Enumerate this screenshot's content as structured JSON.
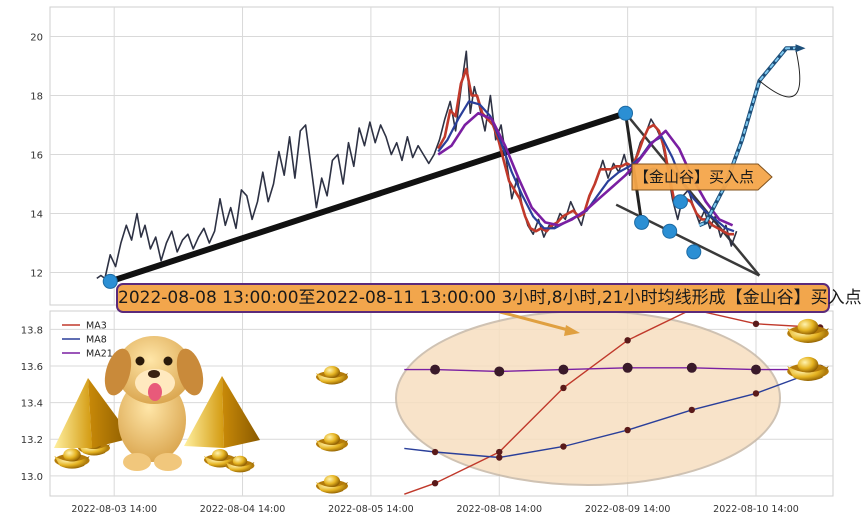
{
  "chart_data": [
    {
      "type": "line",
      "title": "",
      "xlabel": "",
      "ylabel": "",
      "ylim": [
        10.9,
        21
      ],
      "yticks": [
        12,
        14,
        16,
        18,
        20
      ],
      "grid": true,
      "series": [
        {
          "values": [
            [
              0,
              11.8
            ],
            [
              0.3,
              11.9
            ],
            [
              0.6,
              11.8
            ],
            [
              1,
              12.6
            ],
            [
              1.4,
              12.2
            ],
            [
              1.8,
              13.0
            ],
            [
              2.2,
              13.6
            ],
            [
              2.6,
              13.1
            ],
            [
              3,
              14.0
            ],
            [
              3.3,
              13.2
            ],
            [
              3.6,
              13.6
            ],
            [
              4,
              12.8
            ],
            [
              4.4,
              13.2
            ],
            [
              4.8,
              12.4
            ],
            [
              5.2,
              13.0
            ],
            [
              5.6,
              13.4
            ],
            [
              6,
              12.7
            ],
            [
              6.4,
              13.1
            ],
            [
              6.8,
              13.3
            ],
            [
              7.2,
              12.8
            ],
            [
              7.6,
              13.2
            ],
            [
              8,
              13.5
            ],
            [
              8.4,
              13.0
            ],
            [
              8.8,
              13.4
            ],
            [
              9.2,
              14.5
            ],
            [
              9.6,
              13.6
            ],
            [
              10,
              14.2
            ],
            [
              10.4,
              13.5
            ],
            [
              10.8,
              14.8
            ],
            [
              11.2,
              14.6
            ],
            [
              11.6,
              13.8
            ],
            [
              12,
              14.4
            ],
            [
              12.4,
              15.4
            ],
            [
              12.8,
              14.4
            ],
            [
              13.2,
              15.0
            ],
            [
              13.6,
              16.1
            ],
            [
              14,
              15.3
            ],
            [
              14.4,
              16.6
            ],
            [
              14.8,
              15.2
            ],
            [
              15.2,
              16.8
            ],
            [
              15.6,
              17.0
            ],
            [
              16,
              15.6
            ],
            [
              16.4,
              14.2
            ],
            [
              16.8,
              15.2
            ],
            [
              17.2,
              14.6
            ],
            [
              17.6,
              15.8
            ],
            [
              18,
              16.0
            ],
            [
              18.4,
              15.0
            ],
            [
              18.8,
              16.4
            ],
            [
              19.2,
              15.6
            ],
            [
              19.6,
              16.9
            ],
            [
              20,
              16.3
            ],
            [
              20.4,
              17.1
            ],
            [
              20.8,
              16.4
            ],
            [
              21.2,
              17.0
            ],
            [
              21.6,
              16.6
            ],
            [
              22,
              16.0
            ],
            [
              22.4,
              16.4
            ],
            [
              22.8,
              15.8
            ],
            [
              23.2,
              16.6
            ],
            [
              23.6,
              15.9
            ],
            [
              24,
              16.3
            ],
            [
              24.4,
              16.0
            ],
            [
              24.8,
              15.7
            ],
            [
              25.2,
              16.0
            ],
            [
              25.6,
              16.5
            ],
            [
              26,
              17.2
            ],
            [
              26.4,
              17.8
            ],
            [
              26.8,
              16.8
            ],
            [
              27.2,
              18.2
            ],
            [
              27.6,
              19.5
            ],
            [
              27.9,
              17.4
            ],
            [
              28.2,
              18.3
            ],
            [
              28.6,
              17.6
            ],
            [
              29,
              16.8
            ],
            [
              29.4,
              18.0
            ],
            [
              29.8,
              16.5
            ],
            [
              30.2,
              17.0
            ],
            [
              30.6,
              15.8
            ],
            [
              31,
              14.5
            ],
            [
              31.4,
              15.2
            ],
            [
              31.8,
              14.2
            ],
            [
              32.2,
              13.6
            ],
            [
              32.6,
              13.3
            ],
            [
              33,
              13.8
            ],
            [
              33.4,
              13.2
            ],
            [
              33.8,
              13.6
            ],
            [
              34.2,
              13.5
            ],
            [
              34.6,
              14.0
            ],
            [
              35,
              13.8
            ],
            [
              35.4,
              14.4
            ],
            [
              35.8,
              14.0
            ],
            [
              36.2,
              13.6
            ],
            [
              36.6,
              14.3
            ],
            [
              37,
              14.8
            ],
            [
              37.4,
              15.2
            ],
            [
              37.8,
              15.8
            ],
            [
              38.2,
              15.2
            ],
            [
              38.6,
              15.7
            ],
            [
              39,
              15.4
            ],
            [
              39.4,
              16.0
            ],
            [
              39.8,
              15.3
            ],
            [
              40.2,
              15.8
            ],
            [
              40.6,
              16.4
            ],
            [
              41,
              16.7
            ],
            [
              41.4,
              17.2
            ],
            [
              41.8,
              16.9
            ],
            [
              42.2,
              16.5
            ],
            [
              42.6,
              15.6
            ],
            [
              43,
              14.5
            ],
            [
              43.4,
              13.8
            ],
            [
              43.8,
              14.6
            ],
            [
              44.2,
              14.8
            ],
            [
              44.6,
              14.2
            ],
            [
              45,
              13.7
            ],
            [
              45.4,
              14.1
            ],
            [
              45.8,
              13.5
            ],
            [
              46.2,
              13.9
            ],
            [
              46.6,
              13.2
            ],
            [
              47,
              13.6
            ],
            [
              47.4,
              12.9
            ],
            [
              47.8,
              13.4
            ]
          ]
        },
        {
          "name": "MA3",
          "values": [
            [
              25.5,
              16.2
            ],
            [
              26,
              16.6
            ],
            [
              26.4,
              17.5
            ],
            [
              26.8,
              17.3
            ],
            [
              27.2,
              18.4
            ],
            [
              27.6,
              18.9
            ],
            [
              28,
              18.0
            ],
            [
              28.4,
              18.0
            ],
            [
              28.8,
              17.4
            ],
            [
              29.2,
              17.2
            ],
            [
              29.6,
              17.0
            ],
            [
              30,
              16.5
            ],
            [
              30.4,
              15.8
            ],
            [
              30.8,
              15.1
            ],
            [
              31.2,
              14.8
            ],
            [
              31.6,
              14.5
            ],
            [
              32,
              13.9
            ],
            [
              32.4,
              13.5
            ],
            [
              32.8,
              13.4
            ],
            [
              33.2,
              13.5
            ],
            [
              33.6,
              13.4
            ],
            [
              34,
              13.6
            ],
            [
              34.4,
              13.7
            ],
            [
              34.8,
              13.9
            ],
            [
              35.2,
              14.0
            ],
            [
              35.6,
              14.1
            ],
            [
              36,
              13.9
            ],
            [
              36.4,
              14.0
            ],
            [
              36.8,
              14.6
            ],
            [
              37.2,
              15.0
            ],
            [
              37.6,
              15.5
            ],
            [
              38,
              15.5
            ],
            [
              38.4,
              15.5
            ],
            [
              38.8,
              15.6
            ],
            [
              39.2,
              15.6
            ],
            [
              39.6,
              15.7
            ],
            [
              40,
              15.6
            ],
            [
              40.4,
              16.0
            ],
            [
              40.8,
              16.5
            ],
            [
              41.2,
              16.9
            ],
            [
              41.6,
              17.0
            ],
            [
              42,
              16.8
            ],
            [
              42.4,
              16.2
            ],
            [
              42.8,
              15.2
            ],
            [
              43.2,
              14.3
            ],
            [
              43.6,
              14.2
            ],
            [
              44,
              14.5
            ],
            [
              44.4,
              14.4
            ],
            [
              44.8,
              14.0
            ],
            [
              45.2,
              13.8
            ],
            [
              45.6,
              13.8
            ],
            [
              46,
              13.6
            ],
            [
              46.4,
              13.5
            ],
            [
              46.8,
              13.4
            ],
            [
              47.2,
              13.3
            ],
            [
              47.6,
              13.3
            ]
          ]
        },
        {
          "name": "MA8",
          "values": [
            [
              25.5,
              16.1
            ],
            [
              26.2,
              16.5
            ],
            [
              27,
              17.2
            ],
            [
              27.8,
              17.8
            ],
            [
              28.6,
              17.7
            ],
            [
              29.4,
              17.3
            ],
            [
              30.2,
              16.4
            ],
            [
              31,
              15.4
            ],
            [
              31.8,
              14.6
            ],
            [
              32.6,
              13.9
            ],
            [
              33.4,
              13.5
            ],
            [
              34.2,
              13.5
            ],
            [
              35,
              13.7
            ],
            [
              35.8,
              13.9
            ],
            [
              36.6,
              14.1
            ],
            [
              37.4,
              14.6
            ],
            [
              38.2,
              15.1
            ],
            [
              39,
              15.4
            ],
            [
              39.8,
              15.6
            ],
            [
              40.6,
              15.9
            ],
            [
              41.4,
              16.4
            ],
            [
              42.2,
              16.6
            ],
            [
              43,
              15.9
            ],
            [
              43.8,
              15.0
            ],
            [
              44.6,
              14.5
            ],
            [
              45.4,
              14.1
            ],
            [
              46.2,
              13.8
            ],
            [
              47,
              13.5
            ],
            [
              47.6,
              13.4
            ]
          ]
        },
        {
          "name": "MA21",
          "values": [
            [
              25.5,
              16.0
            ],
            [
              26.5,
              16.3
            ],
            [
              27.5,
              17.0
            ],
            [
              28.5,
              17.4
            ],
            [
              29.5,
              17.2
            ],
            [
              30.5,
              16.3
            ],
            [
              31.5,
              15.2
            ],
            [
              32.5,
              14.2
            ],
            [
              33.5,
              13.7
            ],
            [
              34.5,
              13.6
            ],
            [
              35.5,
              13.8
            ],
            [
              36.5,
              14.1
            ],
            [
              37.5,
              14.5
            ],
            [
              38.5,
              14.9
            ],
            [
              39.5,
              15.3
            ],
            [
              40.5,
              15.8
            ],
            [
              41.5,
              16.4
            ],
            [
              42.5,
              16.8
            ],
            [
              43.5,
              16.2
            ],
            [
              44.5,
              15.2
            ],
            [
              45.5,
              14.4
            ],
            [
              46.5,
              13.8
            ],
            [
              47.5,
              13.6
            ]
          ]
        }
      ],
      "pattern_points": [
        [
          1,
          11.7
        ],
        [
          39.5,
          17.4
        ],
        [
          40.7,
          13.7
        ],
        [
          41.6,
          15.3
        ],
        [
          42.8,
          13.4
        ],
        [
          43.6,
          14.4
        ],
        [
          44.6,
          12.7
        ]
      ],
      "projection": [
        [
          45,
          13.6
        ],
        [
          45.5,
          13.7
        ],
        [
          47,
          15.0
        ],
        [
          48.2,
          16.5
        ],
        [
          49.5,
          18.5
        ],
        [
          51.5,
          19.6
        ],
        [
          52.5,
          19.6
        ]
      ],
      "label": "【金山谷】买入点"
    },
    {
      "type": "line",
      "title": "",
      "xlabel": "",
      "ylabel": "",
      "ylim": [
        12.89,
        13.9
      ],
      "yticks": [
        13.0,
        13.2,
        13.4,
        13.6,
        13.8
      ],
      "grid": true,
      "legend": "top-left",
      "categories": [
        "2022-08-03 14:00",
        "2022-08-04 14:00",
        "2022-08-05 14:00",
        "2022-08-08 14:00",
        "2022-08-09 14:00",
        "2022-08-10 14:00"
      ],
      "series": [
        {
          "name": "MA3",
          "color": "#c0392b",
          "values": [
            [
              2.26,
              12.9
            ],
            [
              2.5,
              12.96
            ],
            [
              3.0,
              13.13
            ],
            [
              3.5,
              13.48
            ],
            [
              4.0,
              13.74
            ],
            [
              4.5,
              13.91
            ],
            [
              5.0,
              13.83
            ],
            [
              5.5,
              13.81
            ]
          ]
        },
        {
          "name": "MA8",
          "color": "#2a3f9a",
          "values": [
            [
              2.26,
              13.15
            ],
            [
              2.5,
              13.13
            ],
            [
              3.0,
              13.1
            ],
            [
              3.5,
              13.16
            ],
            [
              4.0,
              13.25
            ],
            [
              4.5,
              13.36
            ],
            [
              5.0,
              13.45
            ],
            [
              5.5,
              13.58
            ]
          ]
        },
        {
          "name": "MA21",
          "color": "#7a1fa2",
          "values": [
            [
              2.26,
              13.58
            ],
            [
              2.5,
              13.58
            ],
            [
              3.0,
              13.57
            ],
            [
              3.5,
              13.58
            ],
            [
              4.0,
              13.59
            ],
            [
              4.5,
              13.59
            ],
            [
              5.0,
              13.58
            ],
            [
              5.5,
              13.58
            ]
          ]
        }
      ]
    }
  ],
  "banner": "2022-08-08 13:00:00至2022-08-11 13:00:00 3小时,8小时,21小时均线形成【金山谷】买入点",
  "colors": {
    "price": "#2e3244",
    "ma3": "#c0392b",
    "ma8": "#2a3f9a",
    "ma21": "#7a1fa2",
    "marker": "#2b8fd4",
    "bubble": "#f5a64a",
    "ellipse": "#f7dfc0"
  },
  "icons": [
    "golden-puppy-icon",
    "gold-pyramid-icon",
    "gold-ingot-icon",
    "arrow-icon"
  ]
}
